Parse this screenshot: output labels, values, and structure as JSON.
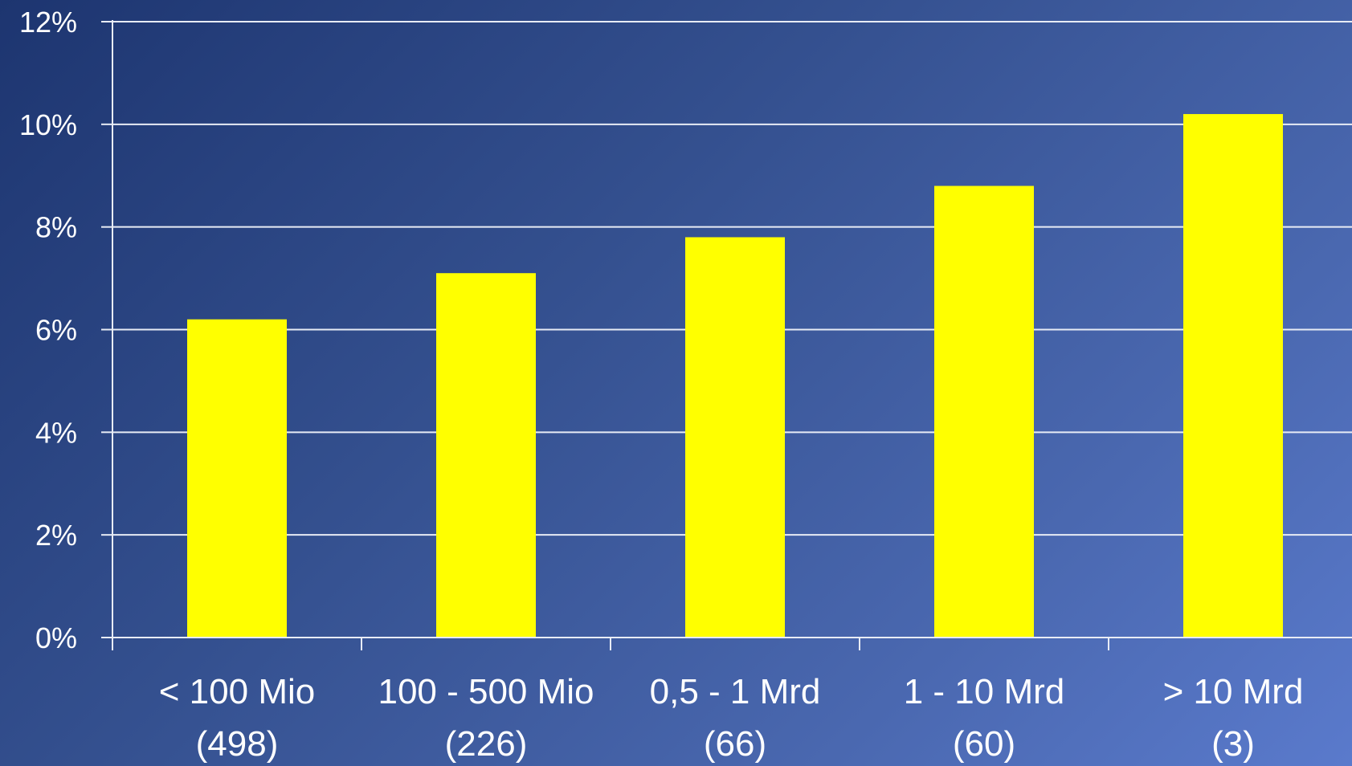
{
  "chart_data": {
    "type": "bar",
    "categories": [
      {
        "line1": "< 100 Mio",
        "line2": "(498)"
      },
      {
        "line1": "100 - 500 Mio",
        "line2": "(226)"
      },
      {
        "line1": "0,5 - 1 Mrd",
        "line2": "(66)"
      },
      {
        "line1": "1 - 10 Mrd",
        "line2": "(60)"
      },
      {
        "line1": "> 10 Mrd",
        "line2": "(3)"
      }
    ],
    "values": [
      6.2,
      7.1,
      7.8,
      8.8,
      10.2
    ],
    "value_unit": "%",
    "ylim": [
      0,
      12
    ],
    "yticks": [
      "0%",
      "2%",
      "4%",
      "6%",
      "8%",
      "10%",
      "12%"
    ],
    "grid": true,
    "bar_color": "#ffff00"
  }
}
